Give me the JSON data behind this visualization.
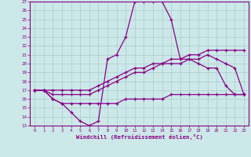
{
  "xlabel": "Windchill (Refroidissement éolien,°C)",
  "background_color": "#cce8e8",
  "grid_color": "#aacccc",
  "line_color": "#880088",
  "xlim": [
    -0.5,
    23.5
  ],
  "ylim": [
    13,
    27
  ],
  "xticks": [
    0,
    1,
    2,
    3,
    4,
    5,
    6,
    7,
    8,
    9,
    10,
    11,
    12,
    13,
    14,
    15,
    16,
    17,
    18,
    19,
    20,
    21,
    22,
    23
  ],
  "yticks": [
    13,
    14,
    15,
    16,
    17,
    18,
    19,
    20,
    21,
    22,
    23,
    24,
    25,
    26,
    27
  ],
  "series": [
    [
      17.0,
      17.0,
      16.0,
      15.5,
      14.5,
      13.5,
      13.0,
      13.5,
      20.5,
      21.0,
      23.0,
      27.0,
      27.0,
      27.0,
      27.0,
      25.0,
      20.5,
      20.5,
      20.0,
      19.5,
      19.5,
      17.5,
      16.5,
      16.5
    ],
    [
      17.0,
      17.0,
      17.0,
      17.0,
      17.0,
      17.0,
      17.0,
      17.5,
      18.0,
      18.5,
      19.0,
      19.5,
      19.5,
      20.0,
      20.0,
      20.5,
      20.5,
      21.0,
      21.0,
      21.5,
      21.5,
      21.5,
      21.5,
      21.5
    ],
    [
      17.0,
      17.0,
      16.0,
      15.5,
      15.5,
      15.5,
      15.5,
      15.5,
      15.5,
      15.5,
      16.0,
      16.0,
      16.0,
      16.0,
      16.0,
      16.5,
      16.5,
      16.5,
      16.5,
      16.5,
      16.5,
      16.5,
      16.5,
      16.5
    ],
    [
      17.0,
      17.0,
      16.5,
      16.5,
      16.5,
      16.5,
      16.5,
      17.0,
      17.5,
      18.0,
      18.5,
      19.0,
      19.0,
      19.5,
      20.0,
      20.0,
      20.0,
      20.5,
      20.5,
      21.0,
      20.5,
      20.0,
      19.5,
      16.5
    ]
  ]
}
